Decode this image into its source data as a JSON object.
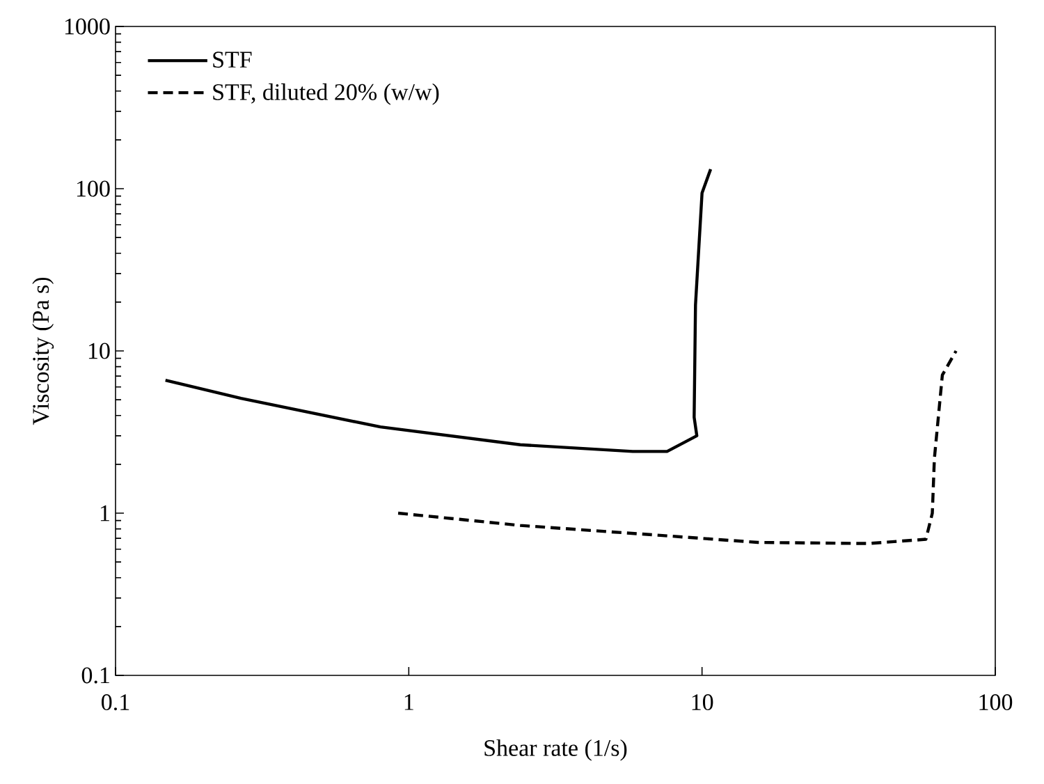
{
  "chart_data": {
    "type": "line",
    "xlabel": "Shear rate (1/s)",
    "ylabel": "Viscosity (Pa s)",
    "log": "xy",
    "xlim": [
      0.1,
      100
    ],
    "ylim": [
      0.1,
      1000
    ],
    "xticks": [
      0.1,
      1,
      10,
      100
    ],
    "yticks": [
      0.1,
      1,
      10,
      100,
      1000
    ],
    "grid": false,
    "legend": "top left",
    "marker": "none",
    "series": [
      {
        "name": "STF",
        "color": "#000000",
        "line_style": "solid",
        "x": [
          0.148,
          0.268,
          0.8,
          2.4,
          5.8,
          7.6,
          9.6,
          9.4,
          9.5,
          10,
          10.7
        ],
        "values": [
          6.6,
          5.1,
          3.4,
          2.64,
          2.4,
          2.4,
          3.0,
          3.9,
          19.2,
          94,
          132
        ]
      },
      {
        "name": "STF, diluted 20% (w/w)",
        "color": "#000000",
        "line_style": "dashed",
        "x": [
          0.92,
          2.4,
          7.2,
          15.5,
          37,
          58,
          61,
          62,
          66,
          73.5
        ],
        "values": [
          1.0,
          0.84,
          0.73,
          0.66,
          0.65,
          0.69,
          1.0,
          2.17,
          7.1,
          10.0
        ]
      }
    ]
  }
}
